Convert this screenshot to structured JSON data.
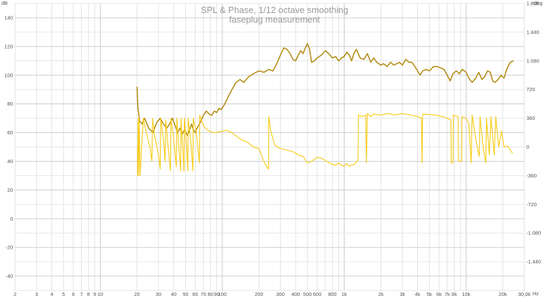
{
  "chart_data": {
    "type": "line",
    "title": "SPL & Phase, 1/12 octave smoothing",
    "subtitle": "faseplug measurement",
    "y_left_unit": "dB",
    "y_right_unit": "deg",
    "x_unit": "Hz",
    "x_scale": "log",
    "xlim": [
      2,
      30000
    ],
    "ylim_left": [
      -50,
      150
    ],
    "ylim_right": [
      -1800,
      1800
    ],
    "grid": true,
    "x_tick_labels": [
      {
        "v": 2,
        "t": "2"
      },
      {
        "v": 3,
        "t": "3"
      },
      {
        "v": 4,
        "t": "4"
      },
      {
        "v": 5,
        "t": "5"
      },
      {
        "v": 6,
        "t": "6"
      },
      {
        "v": 7,
        "t": "7"
      },
      {
        "v": 8,
        "t": "8"
      },
      {
        "v": 9,
        "t": "9"
      },
      {
        "v": 10,
        "t": "10"
      },
      {
        "v": 20,
        "t": "20"
      },
      {
        "v": 30,
        "t": "30"
      },
      {
        "v": 40,
        "t": "40"
      },
      {
        "v": 50,
        "t": "50"
      },
      {
        "v": 60,
        "t": "60"
      },
      {
        "v": 70,
        "t": "70"
      },
      {
        "v": 80,
        "t": "80"
      },
      {
        "v": 90,
        "t": "90"
      },
      {
        "v": 100,
        "t": "100"
      },
      {
        "v": 200,
        "t": "200"
      },
      {
        "v": 300,
        "t": "300"
      },
      {
        "v": 400,
        "t": "400"
      },
      {
        "v": 500,
        "t": "500"
      },
      {
        "v": 600,
        "t": "600"
      },
      {
        "v": 800,
        "t": "800"
      },
      {
        "v": 1000,
        "t": "1k"
      },
      {
        "v": 2000,
        "t": "2k"
      },
      {
        "v": 3000,
        "t": "3k"
      },
      {
        "v": 4000,
        "t": "4k"
      },
      {
        "v": 5000,
        "t": "5k"
      },
      {
        "v": 6000,
        "t": "6k"
      },
      {
        "v": 7000,
        "t": "7k"
      },
      {
        "v": 8000,
        "t": "8k"
      },
      {
        "v": 10000,
        "t": "10k"
      },
      {
        "v": 20000,
        "t": "20k"
      },
      {
        "v": 30000,
        "t": "30,0k"
      }
    ],
    "y_left_ticks": [
      140,
      120,
      100,
      80,
      60,
      40,
      20,
      0,
      -20,
      -40
    ],
    "y_right_tick_labels": [
      {
        "v": 1800,
        "t": "1.800"
      },
      {
        "v": 1440,
        "t": "1.440"
      },
      {
        "v": 1080,
        "t": "1.080"
      },
      {
        "v": 720,
        "t": "720"
      },
      {
        "v": 360,
        "t": "360"
      },
      {
        "v": 0,
        "t": "0"
      },
      {
        "v": -360,
        "t": "-360"
      },
      {
        "v": -720,
        "t": "-720"
      },
      {
        "v": -1080,
        "t": "-1.080"
      },
      {
        "v": -1440,
        "t": "-1.440"
      }
    ],
    "series": [
      {
        "color": "#b28c14",
        "axis": "left",
        "points": [
          [
            20,
            92
          ],
          [
            20.3,
            78
          ],
          [
            21,
            68
          ],
          [
            22,
            66
          ],
          [
            23,
            70
          ],
          [
            25,
            63
          ],
          [
            27,
            60
          ],
          [
            29,
            67
          ],
          [
            31,
            70
          ],
          [
            33,
            66
          ],
          [
            35,
            63
          ],
          [
            37,
            66
          ],
          [
            39,
            70
          ],
          [
            41,
            65
          ],
          [
            43,
            60
          ],
          [
            45,
            63
          ],
          [
            47,
            59
          ],
          [
            49,
            62
          ],
          [
            52,
            58
          ],
          [
            54,
            62
          ],
          [
            56,
            66
          ],
          [
            58,
            62
          ],
          [
            60,
            60
          ],
          [
            62,
            63
          ],
          [
            66,
            67
          ],
          [
            70,
            72
          ],
          [
            74,
            75
          ],
          [
            78,
            73
          ],
          [
            82,
            72
          ],
          [
            86,
            75
          ],
          [
            90,
            74
          ],
          [
            94,
            77
          ],
          [
            98,
            76
          ],
          [
            105,
            80
          ],
          [
            112,
            85
          ],
          [
            120,
            90
          ],
          [
            130,
            95
          ],
          [
            140,
            97
          ],
          [
            150,
            95
          ],
          [
            165,
            99
          ],
          [
            180,
            101
          ],
          [
            200,
            103
          ],
          [
            220,
            102
          ],
          [
            240,
            104
          ],
          [
            260,
            103
          ],
          [
            280,
            108
          ],
          [
            300,
            114
          ],
          [
            320,
            119
          ],
          [
            340,
            118
          ],
          [
            360,
            115
          ],
          [
            380,
            111
          ],
          [
            400,
            110
          ],
          [
            420,
            114
          ],
          [
            440,
            117
          ],
          [
            460,
            115
          ],
          [
            480,
            119
          ],
          [
            500,
            122
          ],
          [
            520,
            118
          ],
          [
            540,
            109
          ],
          [
            570,
            110
          ],
          [
            600,
            112
          ],
          [
            650,
            114
          ],
          [
            700,
            117
          ],
          [
            750,
            115
          ],
          [
            800,
            112
          ],
          [
            850,
            113
          ],
          [
            900,
            110
          ],
          [
            950,
            112
          ],
          [
            1000,
            113
          ],
          [
            1050,
            116
          ],
          [
            1100,
            114
          ],
          [
            1150,
            110
          ],
          [
            1200,
            115
          ],
          [
            1260,
            118
          ],
          [
            1350,
            112
          ],
          [
            1450,
            111
          ],
          [
            1550,
            115
          ],
          [
            1650,
            109
          ],
          [
            1750,
            112
          ],
          [
            1850,
            109
          ],
          [
            2000,
            107
          ],
          [
            2100,
            108
          ],
          [
            2250,
            106
          ],
          [
            2400,
            109
          ],
          [
            2550,
            107
          ],
          [
            2700,
            108
          ],
          [
            2850,
            109
          ],
          [
            3000,
            107
          ],
          [
            3200,
            111
          ],
          [
            3400,
            109
          ],
          [
            3600,
            109
          ],
          [
            3800,
            106
          ],
          [
            4000,
            103
          ],
          [
            4200,
            100
          ],
          [
            4400,
            103
          ],
          [
            4700,
            104
          ],
          [
            5000,
            103
          ],
          [
            5400,
            106
          ],
          [
            5800,
            106
          ],
          [
            6200,
            105
          ],
          [
            6600,
            104
          ],
          [
            7000,
            100
          ],
          [
            7400,
            96
          ],
          [
            7800,
            101
          ],
          [
            8300,
            103
          ],
          [
            8800,
            101
          ],
          [
            9300,
            104
          ],
          [
            10000,
            102
          ],
          [
            10500,
            98
          ],
          [
            11200,
            95
          ],
          [
            12000,
            98
          ],
          [
            12700,
            102
          ],
          [
            13500,
            97
          ],
          [
            14200,
            99
          ],
          [
            15000,
            103
          ],
          [
            15800,
            102
          ],
          [
            16500,
            96
          ],
          [
            17300,
            95
          ],
          [
            18300,
            97
          ],
          [
            19300,
            100
          ],
          [
            20500,
            98
          ],
          [
            21500,
            104
          ],
          [
            23000,
            109
          ],
          [
            24500,
            110
          ]
        ]
      },
      {
        "color": "#f7cc1c",
        "axis": "right",
        "points": [
          [
            20.2,
            0
          ],
          [
            20.2,
            -360
          ],
          [
            20.4,
            360
          ],
          [
            20.6,
            -360
          ],
          [
            20.8,
            360
          ],
          [
            21.2,
            -360
          ],
          [
            22.5,
            360
          ],
          [
            24,
            160
          ],
          [
            25.5,
            0
          ],
          [
            26.5,
            -180
          ],
          [
            26.8,
            360
          ],
          [
            28,
            120
          ],
          [
            30,
            -100
          ],
          [
            31,
            -280
          ],
          [
            31.3,
            360
          ],
          [
            33,
            80
          ],
          [
            34,
            -180
          ],
          [
            34.4,
            340
          ],
          [
            36,
            0
          ],
          [
            37.6,
            -300
          ],
          [
            37.9,
            360
          ],
          [
            40,
            100
          ],
          [
            42,
            -250
          ],
          [
            42.4,
            360
          ],
          [
            44,
            0
          ],
          [
            45.6,
            -300
          ],
          [
            45.9,
            360
          ],
          [
            47,
            80
          ],
          [
            48.6,
            -300
          ],
          [
            48.9,
            360
          ],
          [
            50.5,
            100
          ],
          [
            52.2,
            -300
          ],
          [
            52.5,
            360
          ],
          [
            55,
            100
          ],
          [
            57.5,
            -300
          ],
          [
            57.8,
            360
          ],
          [
            61,
            200
          ],
          [
            65,
            -200
          ],
          [
            65.3,
            400
          ],
          [
            68,
            320
          ],
          [
            72,
            240
          ],
          [
            78,
            200
          ],
          [
            85,
            180
          ],
          [
            95,
            190
          ],
          [
            110,
            210
          ],
          [
            125,
            160
          ],
          [
            140,
            100
          ],
          [
            160,
            60
          ],
          [
            180,
            0
          ],
          [
            200,
            -20
          ],
          [
            215,
            -150
          ],
          [
            230,
            -240
          ],
          [
            240,
            -280
          ],
          [
            240.5,
            380
          ],
          [
            250,
            200
          ],
          [
            270,
            20
          ],
          [
            300,
            -20
          ],
          [
            340,
            -40
          ],
          [
            380,
            -60
          ],
          [
            420,
            -100
          ],
          [
            460,
            -120
          ],
          [
            500,
            -200
          ],
          [
            540,
            -180
          ],
          [
            600,
            -130
          ],
          [
            650,
            -140
          ],
          [
            700,
            -170
          ],
          [
            800,
            -220
          ],
          [
            850,
            -230
          ],
          [
            900,
            -200
          ],
          [
            950,
            -230
          ],
          [
            1000,
            -240
          ],
          [
            1050,
            -210
          ],
          [
            1100,
            -240
          ],
          [
            1200,
            -220
          ],
          [
            1300,
            -170
          ],
          [
            1310,
            400
          ],
          [
            1400,
            380
          ],
          [
            1500,
            400
          ],
          [
            1520,
            -200
          ],
          [
            1550,
            420
          ],
          [
            1650,
            380
          ],
          [
            1750,
            410
          ],
          [
            2000,
            400
          ],
          [
            2300,
            420
          ],
          [
            2600,
            400
          ],
          [
            3000,
            420
          ],
          [
            3500,
            400
          ],
          [
            4000,
            380
          ],
          [
            4300,
            360
          ],
          [
            4350,
            -200
          ],
          [
            4400,
            410
          ],
          [
            4800,
            410
          ],
          [
            5500,
            400
          ],
          [
            6500,
            380
          ],
          [
            7500,
            340
          ],
          [
            7550,
            -200
          ],
          [
            7800,
            -200
          ],
          [
            7850,
            400
          ],
          [
            8600,
            380
          ],
          [
            8650,
            -180
          ],
          [
            9200,
            -180
          ],
          [
            9250,
            380
          ],
          [
            10000,
            360
          ],
          [
            10500,
            300
          ],
          [
            11000,
            -200
          ],
          [
            11200,
            400
          ],
          [
            12000,
            100
          ],
          [
            12800,
            -120
          ],
          [
            13000,
            380
          ],
          [
            13800,
            0
          ],
          [
            14500,
            -200
          ],
          [
            14700,
            360
          ],
          [
            15500,
            -100
          ],
          [
            16000,
            380
          ],
          [
            17000,
            -100
          ],
          [
            17500,
            380
          ],
          [
            18500,
            0
          ],
          [
            19500,
            200
          ],
          [
            20500,
            0
          ],
          [
            22000,
            10
          ],
          [
            24000,
            -80
          ]
        ]
      }
    ]
  }
}
